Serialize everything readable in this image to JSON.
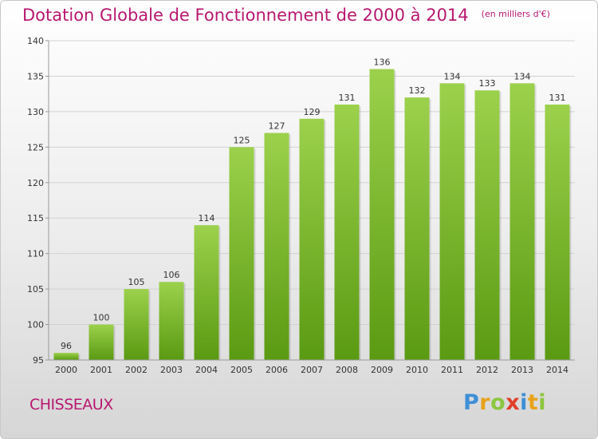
{
  "title": "Dotation Globale de Fonctionnement de 2000 à 2014",
  "unit": "(en milliers d'€)",
  "commune": "CHISSEAUX",
  "brand": "Proxiti",
  "colors": {
    "title": "#b81870",
    "bar_top": "#9cd14c",
    "bar_bottom": "#5a9a12",
    "brand_P": "#3d8fd6",
    "brand_r": "#e8a21a",
    "brand_o": "#8cc63f",
    "brand_x": "#e0402b",
    "brand_i": "#3d8fd6",
    "brand_t": "#e8a21a",
    "brand_i2": "#8cc63f"
  },
  "chart_data": {
    "type": "bar",
    "title": "Dotation Globale de Fonctionnement de 2000 à 2014",
    "subtitle": "(en milliers d'€)",
    "categories": [
      "2000",
      "2001",
      "2002",
      "2003",
      "2004",
      "2005",
      "2006",
      "2007",
      "2008",
      "2009",
      "2010",
      "2011",
      "2012",
      "2013",
      "2014"
    ],
    "values": [
      96,
      100,
      105,
      106,
      114,
      125,
      127,
      129,
      131,
      136,
      132,
      134,
      133,
      134,
      131
    ],
    "ylim": [
      95,
      140
    ],
    "yticks": [
      95,
      100,
      105,
      110,
      115,
      120,
      125,
      130,
      135,
      140
    ],
    "grid": true,
    "xlabel": "",
    "ylabel": ""
  }
}
